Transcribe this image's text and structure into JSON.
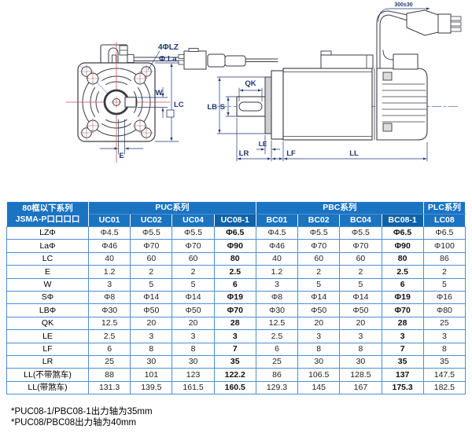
{
  "diagram": {
    "front_labels": {
      "holes": "4ΦLZ",
      "bolt_circle": "Φ La",
      "key_width": "W",
      "flange": "LC",
      "offset": "E"
    },
    "side_labels": {
      "key_len": "QK",
      "pilot": "LB",
      "shaft": "S",
      "le": "LE",
      "lr": "LR",
      "lf": "LF",
      "ll": "LL",
      "cable": "300±30"
    }
  },
  "table": {
    "corner_title": [
      "80框以下系列",
      "JSMA-P口口口口"
    ],
    "groups": [
      {
        "label": "PUC系列",
        "span": 4
      },
      {
        "label": "PBC系列",
        "span": 4
      },
      {
        "label": "PLC系列",
        "span": 1
      }
    ],
    "models": [
      "UC01",
      "UC02",
      "UC04",
      "UC08-1",
      "BC01",
      "BC02",
      "BC04",
      "BC08-1",
      "LC08"
    ],
    "emphasis_cols": [
      3,
      7
    ],
    "rows": [
      {
        "label": "LZΦ",
        "values": [
          "Φ4.5",
          "Φ5.5",
          "Φ5.5",
          "Φ6.5",
          "Φ4.5",
          "Φ5.5",
          "Φ5.5",
          "Φ6.5",
          "Φ6.5"
        ]
      },
      {
        "label": "LaΦ",
        "values": [
          "Φ46",
          "Φ70",
          "Φ70",
          "Φ90",
          "Φ46",
          "Φ70",
          "Φ70",
          "Φ90",
          "Φ100"
        ]
      },
      {
        "label": "LC",
        "values": [
          "40",
          "60",
          "60",
          "80",
          "40",
          "60",
          "60",
          "80",
          "86"
        ]
      },
      {
        "label": "E",
        "values": [
          "1.2",
          "2",
          "2",
          "2.5",
          "1.2",
          "2",
          "2",
          "2.5",
          "2"
        ]
      },
      {
        "label": "W",
        "values": [
          "3",
          "5",
          "5",
          "6",
          "3",
          "5",
          "5",
          "6",
          "5"
        ]
      },
      {
        "label": "SΦ",
        "values": [
          "Φ8",
          "Φ14",
          "Φ14",
          "Φ19",
          "Φ8",
          "Φ14",
          "Φ14",
          "Φ19",
          "Φ16"
        ]
      },
      {
        "label": "LBΦ",
        "values": [
          "Φ30",
          "Φ50",
          "Φ50",
          "Φ70",
          "Φ30",
          "Φ50",
          "Φ50",
          "Φ70",
          "Φ80"
        ]
      },
      {
        "label": "QK",
        "values": [
          "12.5",
          "20",
          "20",
          "28",
          "12.5",
          "20",
          "20",
          "28",
          "25"
        ]
      },
      {
        "label": "LE",
        "values": [
          "2.5",
          "3",
          "3",
          "3",
          "2.5",
          "3",
          "3",
          "3",
          "3"
        ]
      },
      {
        "label": "LF",
        "values": [
          "6",
          "8",
          "8",
          "7",
          "6",
          "8",
          "8",
          "7",
          "8"
        ]
      },
      {
        "label": "LR",
        "values": [
          "25",
          "30",
          "30",
          "35",
          "25",
          "30",
          "30",
          "35",
          "35"
        ]
      },
      {
        "label": "LL(不带煞车)",
        "values": [
          "88",
          "101",
          "123",
          "122.2",
          "86",
          "106.5",
          "128.5",
          "137",
          "147.5"
        ]
      },
      {
        "label": "LL(带煞车)",
        "values": [
          "131.3",
          "139.5",
          "161.5",
          "160.5",
          "129.3",
          "145",
          "167",
          "175.3",
          "182.5"
        ]
      }
    ]
  },
  "footnotes": [
    "*PUC08-1/PBC08-1出力轴为35mm",
    "*PUC08/PBC08出力轴为40mm"
  ],
  "colors": {
    "header_bg": "#1b74c2",
    "header_bg_dark": "#0f62a8",
    "table_border": "#4e8fd0",
    "dimension": "#1f3576",
    "centerline_red": "#d05050",
    "outline": "#3a3a45"
  }
}
